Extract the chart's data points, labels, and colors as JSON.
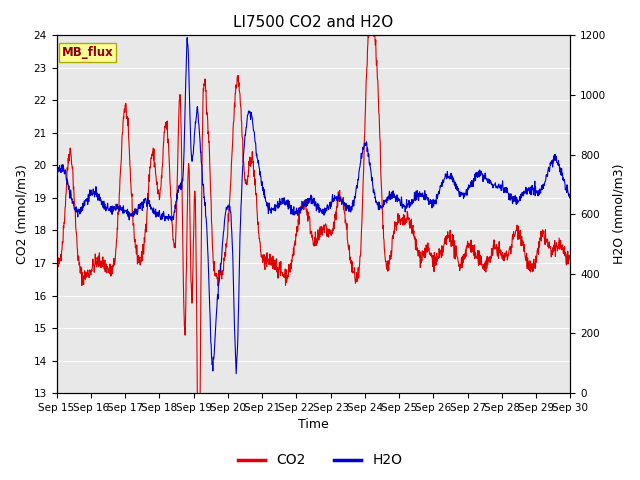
{
  "title": "LI7500 CO2 and H2O",
  "xlabel": "Time",
  "ylabel_left": "CO2 (mmol/m3)",
  "ylabel_right": "H2O (mmol/m3)",
  "ylim_left": [
    13.0,
    24.0
  ],
  "ylim_right": [
    0,
    1200
  ],
  "yticks_left": [
    13.0,
    14.0,
    15.0,
    16.0,
    17.0,
    18.0,
    19.0,
    20.0,
    21.0,
    22.0,
    23.0,
    24.0
  ],
  "yticks_right": [
    0,
    200,
    400,
    600,
    800,
    1000,
    1200
  ],
  "xtick_labels": [
    "Sep 15",
    "Sep 16",
    "Sep 17",
    "Sep 18",
    "Sep 19",
    "Sep 20",
    "Sep 21",
    "Sep 22",
    "Sep 23",
    "Sep 24",
    "Sep 25",
    "Sep 26",
    "Sep 27",
    "Sep 28",
    "Sep 29",
    "Sep 30"
  ],
  "color_co2": "#dd0000",
  "color_h2o": "#0000cc",
  "legend_label_co2": "CO2",
  "legend_label_h2o": "H2O",
  "watermark_text": "MB_flux",
  "plot_bg_color": "#e8e8e8",
  "title_fontsize": 11,
  "axis_fontsize": 9,
  "tick_fontsize": 7.5,
  "legend_fontsize": 10,
  "linewidth": 0.8,
  "seed": 42,
  "n_points": 1500
}
